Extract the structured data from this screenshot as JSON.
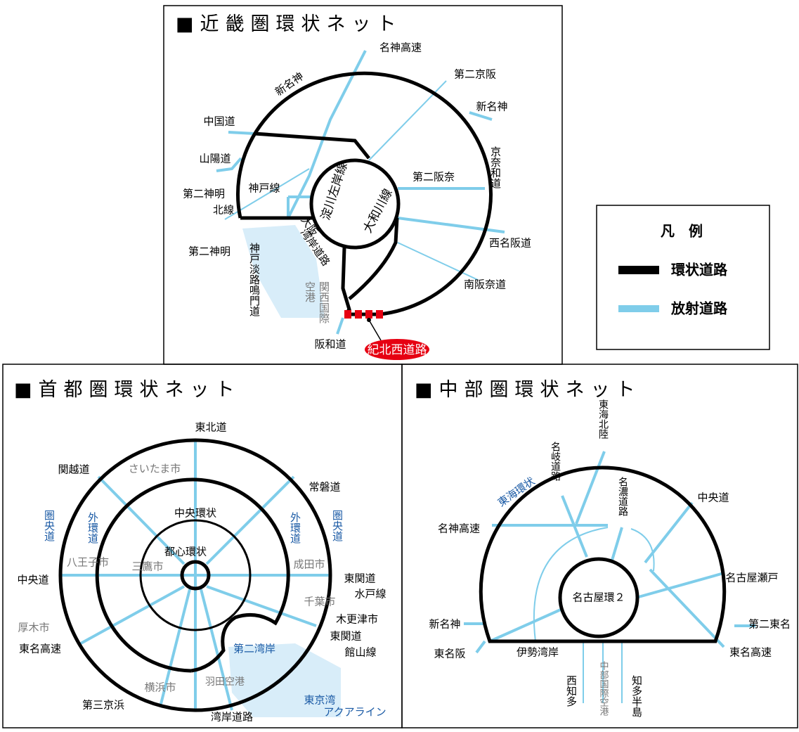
{
  "kinki": {
    "title": "■近畿圏環状ネット",
    "labels": [
      "名神高速",
      "第二京阪",
      "新名神",
      "新名神",
      "中国道",
      "山陽道",
      "神戸線",
      "第二神明",
      "北線",
      "第二神明",
      "神戸淡路鳴門道",
      "大阪",
      "湾岸道路",
      "淀川左岸線",
      "大和川線",
      "第二阪奈",
      "京奈和道",
      "西名阪道",
      "南阪奈道",
      "関西国際",
      "空港",
      "阪和道",
      "紀北西道路"
    ]
  },
  "legend": {
    "title": "凡　例",
    "items": [
      "環状道路",
      "放射道路"
    ]
  },
  "shuto": {
    "title": "■首都圏環状ネット",
    "labels": [
      "東北道",
      "関越道",
      "さいたま市",
      "常磐道",
      "圏央道",
      "圏央道",
      "外環道",
      "外環道",
      "中央環状",
      "都心環状",
      "八王子市",
      "三鷹市",
      "成田市",
      "中央道",
      "東関道",
      "水戸線",
      "千葉市",
      "厚木市",
      "木更津市",
      "東名高速",
      "東関道",
      "館山線",
      "第二湾岸",
      "羽田空港",
      "横浜市",
      "第三京浜",
      "東京湾",
      "アクアライン",
      "湾岸道路"
    ]
  },
  "chubu": {
    "title": "■中部圏環状ネット",
    "labels": [
      "東海北陸",
      "名岐道路",
      "名濃道路",
      "東海環状",
      "中央道",
      "名神高速",
      "名古屋瀬戸",
      "名古屋環２",
      "新名神",
      "第二東名",
      "東名阪",
      "伊勢湾岸",
      "東名高速",
      "西知多",
      "中部国際空港",
      "知多半島"
    ]
  }
}
